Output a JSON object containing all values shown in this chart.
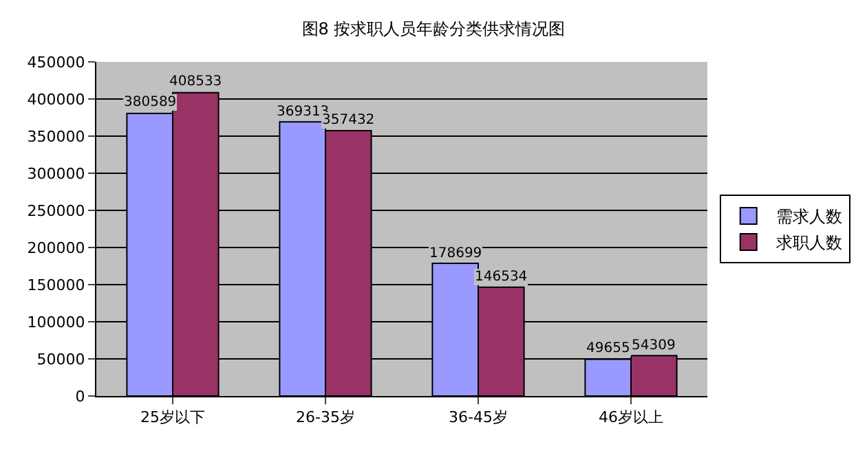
{
  "chart_data": {
    "type": "bar",
    "title": "图8 按求职人员年龄分类供求情况图",
    "categories": [
      "25岁以下",
      "26-35岁",
      "36-45岁",
      "46岁以上"
    ],
    "series": [
      {
        "name": "需求人数",
        "color": "#9999ff",
        "values": [
          380589,
          369313,
          178699,
          49655
        ]
      },
      {
        "name": "求职人数",
        "color": "#993366",
        "values": [
          408533,
          357432,
          146534,
          54309
        ]
      }
    ],
    "ylim": [
      0,
      450000
    ],
    "yticks": [
      0,
      50000,
      100000,
      150000,
      200000,
      250000,
      300000,
      350000,
      400000,
      450000
    ],
    "grid": "y",
    "legend": "right",
    "data_labels": true
  }
}
